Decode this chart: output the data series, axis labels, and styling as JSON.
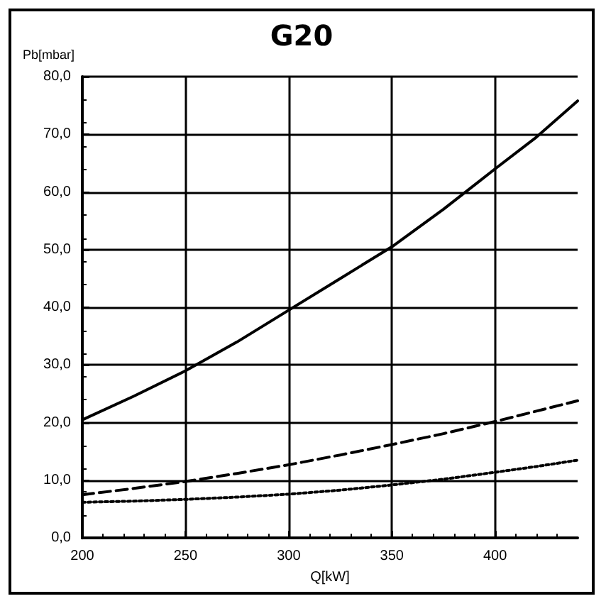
{
  "chart_data": {
    "type": "line",
    "title": "G20",
    "xlabel": "Q[kW]",
    "ylabel": "Pb[mbar]",
    "x": [
      200,
      225,
      250,
      275,
      300,
      325,
      350,
      375,
      400,
      420,
      440
    ],
    "series": [
      {
        "color": "#000000",
        "line_style": "solid",
        "values": [
          20.5,
          24.6,
          29,
          34,
          39.5,
          45,
          50.5,
          57,
          64,
          69.5,
          75.8
        ]
      },
      {
        "color": "#000000",
        "line_style": "dashed",
        "values": [
          7.5,
          8.6,
          9.8,
          11.2,
          12.7,
          14.4,
          16.2,
          18.1,
          20.2,
          22,
          23.8
        ]
      },
      {
        "color": "#000000",
        "line_style": "dotted",
        "values": [
          6.2,
          6.4,
          6.7,
          7.1,
          7.6,
          8.3,
          9.2,
          10.2,
          11.4,
          12.4,
          13.5
        ]
      }
    ],
    "xlim": [
      200,
      440
    ],
    "xticks": [
      200,
      250,
      300,
      350,
      400
    ],
    "ylim": [
      0,
      80
    ],
    "yticks": [
      {
        "value": 0,
        "label": "0,0"
      },
      {
        "value": 10,
        "label": "10,0"
      },
      {
        "value": 20,
        "label": "20,0"
      },
      {
        "value": 30,
        "label": "30,0"
      },
      {
        "value": 40,
        "label": "40,0"
      },
      {
        "value": 50,
        "label": "50,0"
      },
      {
        "value": 60,
        "label": "60,0"
      },
      {
        "value": 70,
        "label": "70,0"
      },
      {
        "value": 80,
        "label": "80,0"
      }
    ],
    "grid": true,
    "marker": "none"
  }
}
